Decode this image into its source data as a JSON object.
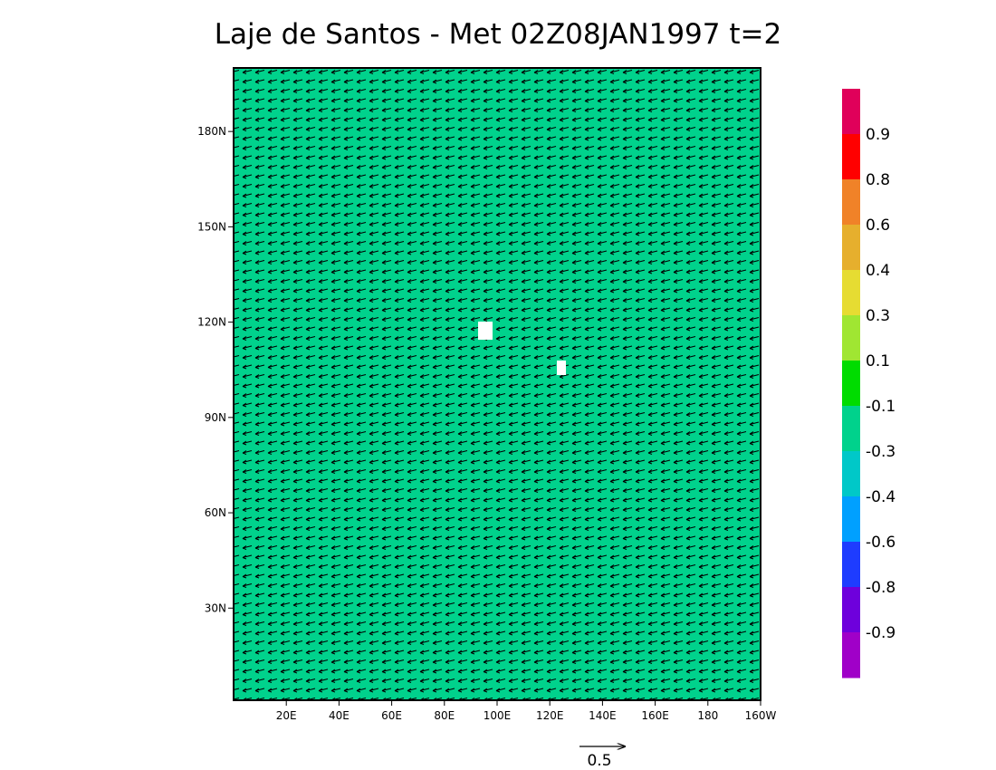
{
  "chart_data": {
    "type": "vector",
    "title": "Laje de Santos - Met 02Z08JAN1997 t=2",
    "fill_color": "#00d28c",
    "xlim": [
      0,
      200
    ],
    "xticks": [
      {
        "value": 20,
        "label": "20E"
      },
      {
        "value": 40,
        "label": "40E"
      },
      {
        "value": 60,
        "label": "60E"
      },
      {
        "value": 80,
        "label": "80E"
      },
      {
        "value": 100,
        "label": "100E"
      },
      {
        "value": 120,
        "label": "120E"
      },
      {
        "value": 140,
        "label": "140E"
      },
      {
        "value": 160,
        "label": "160E"
      },
      180,
      {
        "value": 200,
        "label": "160W"
      }
    ],
    "ylim": [
      1,
      200
    ],
    "yticks": [
      {
        "value": 30,
        "label": "30N"
      },
      {
        "value": 60,
        "label": "60N"
      },
      {
        "value": 90,
        "label": "90N"
      },
      {
        "value": 120,
        "label": "120N"
      },
      {
        "value": 150,
        "label": "150N"
      },
      {
        "value": 180,
        "label": "180N"
      }
    ],
    "colorbar": {
      "levels": [
        0.9,
        0.8,
        0.6,
        0.4,
        0.3,
        0.1,
        -0.1,
        -0.3,
        -0.4,
        -0.6,
        -0.8,
        -0.9
      ],
      "colors": [
        "#e0005a",
        "#ff0000",
        "#f08228",
        "#e6af2d",
        "#e6dc32",
        "#a0e632",
        "#00dc00",
        "#00d28c",
        "#00c8c8",
        "#00a0ff",
        "#1e3cff",
        "#6e00dc",
        "#a000c8"
      ]
    },
    "reference_vector": 0.5
  }
}
